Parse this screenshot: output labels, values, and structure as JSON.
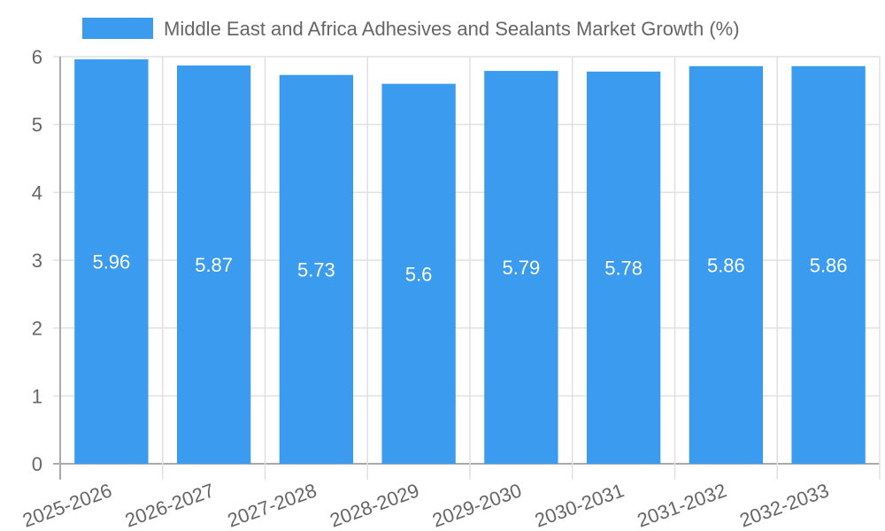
{
  "chart_data": {
    "type": "bar",
    "title": "",
    "legend": [
      {
        "label": "Middle East and Africa Adhesives and Sealants Market Growth (%)",
        "color": "#3a9bef"
      }
    ],
    "legend_position": "top",
    "categories": [
      "2025-2026",
      "2026-2027",
      "2027-2028",
      "2028-2029",
      "2029-2030",
      "2030-2031",
      "2031-2032",
      "2032-2033"
    ],
    "series": [
      {
        "name": "Middle East and Africa Adhesives and Sealants Market Growth (%)",
        "values": [
          5.96,
          5.87,
          5.73,
          5.6,
          5.79,
          5.78,
          5.86,
          5.86
        ],
        "labels": [
          "5.96",
          "5.87",
          "5.73",
          "5.6",
          "5.79",
          "5.78",
          "5.86",
          "5.86"
        ],
        "color": "#3a9bef"
      }
    ],
    "xlabel": "",
    "ylabel": "",
    "ylim": [
      0,
      6
    ],
    "yticks": [
      "0",
      "1",
      "2",
      "3",
      "4",
      "5",
      "6"
    ],
    "grid": true
  }
}
